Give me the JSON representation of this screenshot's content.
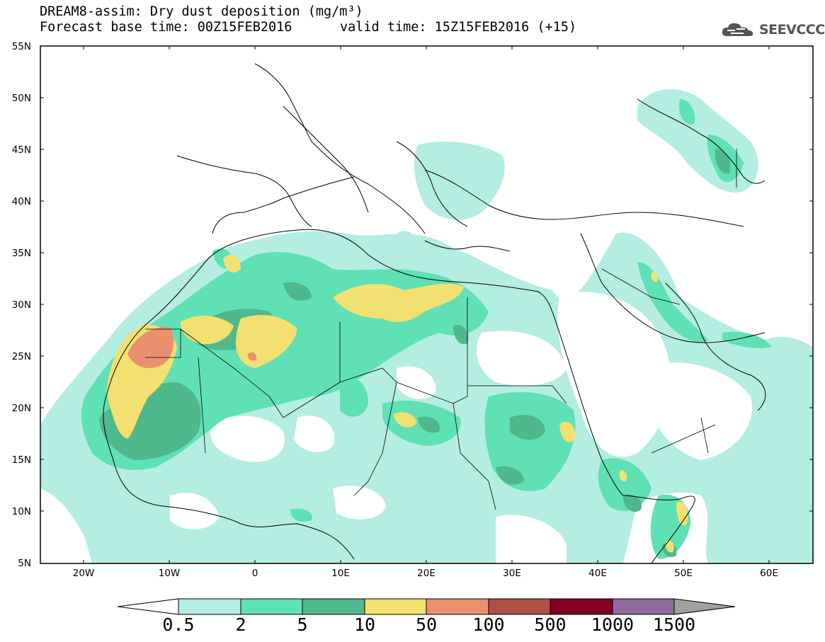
{
  "header": {
    "title": "DREAM8-assim: Dry dust deposition (mg/m³)",
    "base_time": "Forecast base time: 00Z15FEB2016",
    "valid_time": "valid time: 15Z15FEB2016 (+15)",
    "logo_text": "SEEVCCC"
  },
  "map": {
    "lat_labels": [
      "55N",
      "50N",
      "45N",
      "40N",
      "35N",
      "30N",
      "25N",
      "20N",
      "15N",
      "10N",
      "5N"
    ],
    "lon_labels": [
      "20W",
      "10W",
      "0",
      "10E",
      "20E",
      "30E",
      "40E",
      "50E",
      "60E"
    ],
    "extent": {
      "lon_min": -25,
      "lon_max": 65,
      "lat_min": 5,
      "lat_max": 55
    }
  },
  "colorbar": {
    "levels": [
      "0.5",
      "2",
      "5",
      "10",
      "50",
      "100",
      "500",
      "1000",
      "1500"
    ],
    "colors": [
      "#b4ede2",
      "#5fe0b5",
      "#4fb88c",
      "#f2e070",
      "#ea9070",
      "#b05045",
      "#800020",
      "#906aa0"
    ],
    "under_color": "#ffffff",
    "over_color": "#a0a0a0"
  }
}
